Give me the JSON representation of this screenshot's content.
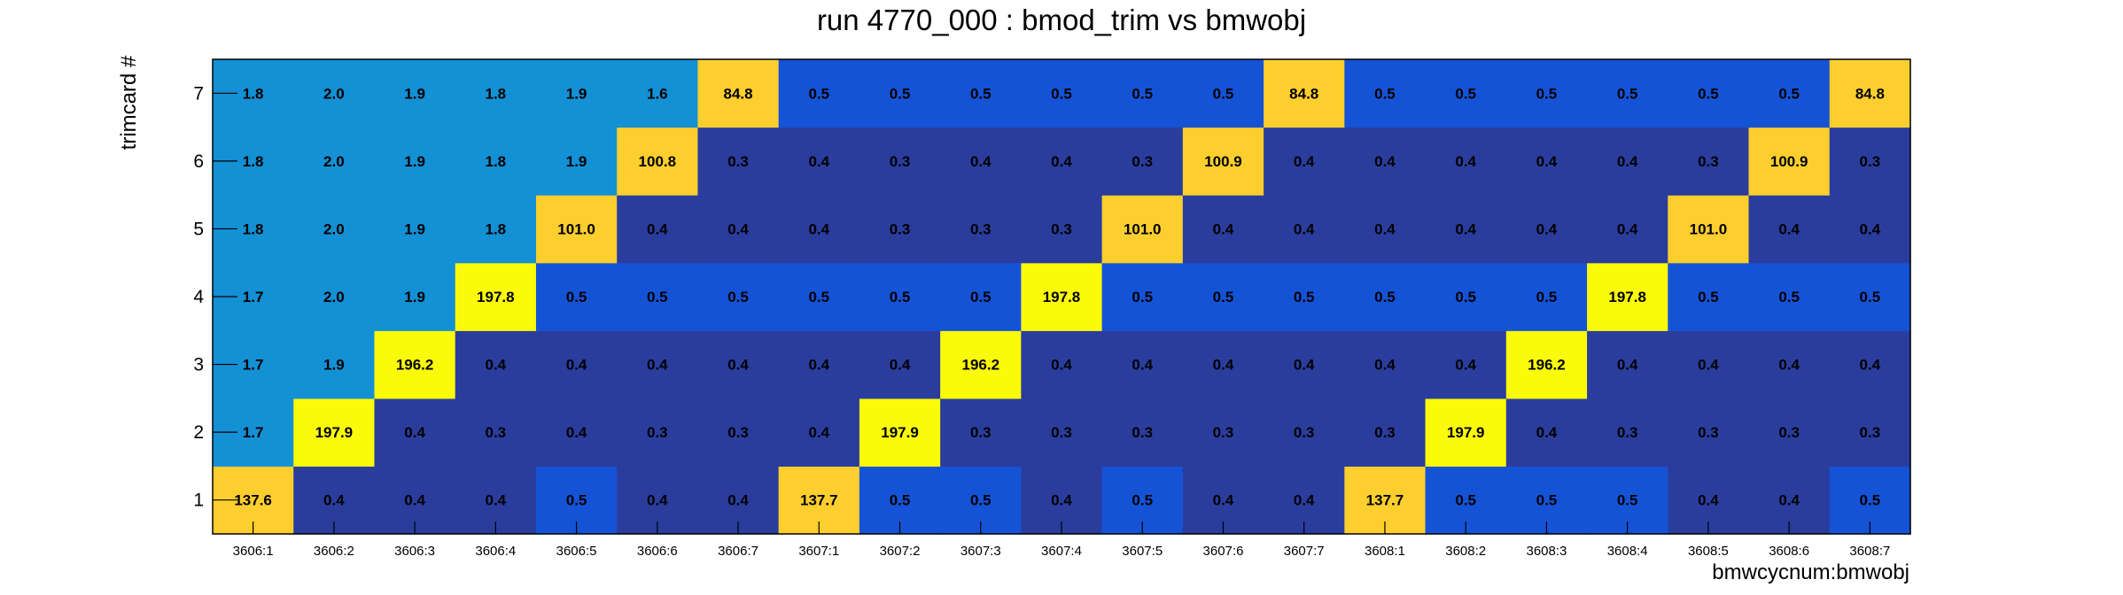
{
  "chart_data": {
    "type": "heatmap",
    "title": "run 4770_000 : bmod_trim vs bmwobj",
    "xlabel": "bmwcycnum:bmwobj",
    "ylabel": "trimcard #",
    "x_categories": [
      "3606:1",
      "3606:2",
      "3606:3",
      "3606:4",
      "3606:5",
      "3606:6",
      "3606:7",
      "3607:1",
      "3607:2",
      "3607:3",
      "3607:4",
      "3607:5",
      "3607:6",
      "3607:7",
      "3608:1",
      "3608:2",
      "3608:3",
      "3608:4",
      "3608:5",
      "3608:6",
      "3608:7"
    ],
    "y_categories": [
      "1",
      "2",
      "3",
      "4",
      "5",
      "6",
      "7"
    ],
    "values": [
      [
        "137.6",
        "0.4",
        "0.4",
        "0.4",
        "0.5",
        "0.4",
        "0.4",
        "137.7",
        "0.5",
        "0.5",
        "0.4",
        "0.5",
        "0.4",
        "0.4",
        "137.7",
        "0.5",
        "0.5",
        "0.5",
        "0.4",
        "0.4",
        "0.5"
      ],
      [
        "1.7",
        "197.9",
        "0.4",
        "0.3",
        "0.4",
        "0.3",
        "0.3",
        "0.4",
        "197.9",
        "0.3",
        "0.3",
        "0.3",
        "0.3",
        "0.3",
        "0.3",
        "197.9",
        "0.4",
        "0.3",
        "0.3",
        "0.3",
        "0.3"
      ],
      [
        "1.7",
        "1.9",
        "196.2",
        "0.4",
        "0.4",
        "0.4",
        "0.4",
        "0.4",
        "0.4",
        "196.2",
        "0.4",
        "0.4",
        "0.4",
        "0.4",
        "0.4",
        "0.4",
        "196.2",
        "0.4",
        "0.4",
        "0.4",
        "0.4"
      ],
      [
        "1.7",
        "2.0",
        "1.9",
        "197.8",
        "0.5",
        "0.5",
        "0.5",
        "0.5",
        "0.5",
        "0.5",
        "197.8",
        "0.5",
        "0.5",
        "0.5",
        "0.5",
        "0.5",
        "0.5",
        "197.8",
        "0.5",
        "0.5",
        "0.5"
      ],
      [
        "1.8",
        "2.0",
        "1.9",
        "1.8",
        "101.0",
        "0.4",
        "0.4",
        "0.4",
        "0.3",
        "0.3",
        "0.3",
        "101.0",
        "0.4",
        "0.4",
        "0.4",
        "0.4",
        "0.4",
        "0.4",
        "101.0",
        "0.4",
        "0.4"
      ],
      [
        "1.8",
        "2.0",
        "1.9",
        "1.8",
        "1.9",
        "100.8",
        "0.3",
        "0.4",
        "0.3",
        "0.4",
        "0.4",
        "0.3",
        "100.9",
        "0.4",
        "0.4",
        "0.4",
        "0.4",
        "0.4",
        "0.3",
        "100.9",
        "0.3"
      ],
      [
        "1.8",
        "2.0",
        "1.9",
        "1.8",
        "1.9",
        "1.6",
        "84.8",
        "0.5",
        "0.5",
        "0.5",
        "0.5",
        "0.5",
        "0.5",
        "84.8",
        "0.5",
        "0.5",
        "0.5",
        "0.5",
        "0.5",
        "0.5",
        "84.8"
      ]
    ],
    "colors": {
      "dark_navy": "#2a3d9d",
      "blue": "#1553d6",
      "light_blue": "#1490d4",
      "orange_yellow": "#fcce2e",
      "bright_yellow": "#fafa0a"
    }
  }
}
